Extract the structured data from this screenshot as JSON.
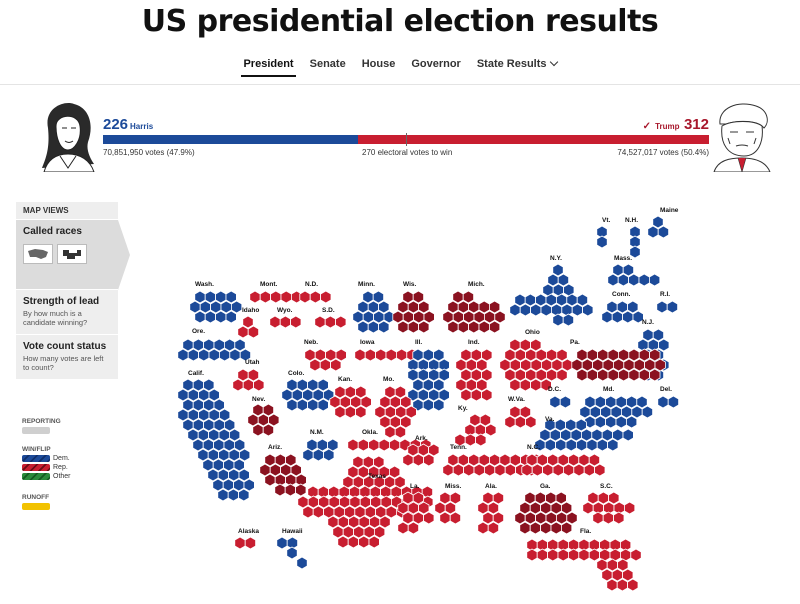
{
  "page": {
    "title": "US presidential election results"
  },
  "tabs": [
    {
      "label": "President",
      "active": true
    },
    {
      "label": "Senate",
      "active": false
    },
    {
      "label": "House",
      "active": false
    },
    {
      "label": "Governor",
      "active": false
    },
    {
      "label": "State Results",
      "active": false
    }
  ],
  "race": {
    "harris": {
      "electoral_votes": "226",
      "name": "Harris",
      "votes_text": "70,851,950 votes (47.9%)"
    },
    "trump": {
      "electoral_votes": "312",
      "name": "Trump",
      "votes_text": "74,527,017 votes (50.4%)"
    },
    "threshold_text": "270 electoral votes to win"
  },
  "map_views": {
    "header": "MAP VIEWS",
    "called": {
      "label": "Called races"
    },
    "strength": {
      "label": "Strength of lead",
      "desc": "By how much is a candidate winning?"
    },
    "count": {
      "label": "Vote count status",
      "desc": "How many votes are left to count?"
    }
  },
  "legend": {
    "reporting": "REPORTING",
    "winflip": "WIN/FLIP",
    "dem": "Dem.",
    "rep": "Rep.",
    "other": "Other",
    "runoff": "RUNOFF"
  },
  "colors": {
    "dem": "#1c4a99",
    "rep": "#c81e30",
    "flip": "#8b1220",
    "other": "#2a8a3a",
    "runoff": "#f2c200",
    "reporting": "#cfcfcf"
  },
  "states": [
    {
      "label": "Vt.",
      "party": "dem"
    },
    {
      "label": "N.H.",
      "party": "dem"
    },
    {
      "label": "Maine",
      "party": "dem"
    },
    {
      "label": "N.Y.",
      "party": "dem"
    },
    {
      "label": "Mass.",
      "party": "dem"
    },
    {
      "label": "Wash.",
      "party": "dem"
    },
    {
      "label": "Mont.",
      "party": "rep"
    },
    {
      "label": "N.D.",
      "party": "rep"
    },
    {
      "label": "Minn.",
      "party": "dem"
    },
    {
      "label": "Wis.",
      "party": "flip"
    },
    {
      "label": "Mich.",
      "party": "flip"
    },
    {
      "label": "Conn.",
      "party": "dem"
    },
    {
      "label": "R.I.",
      "party": "dem"
    },
    {
      "label": "Idaho",
      "party": "rep"
    },
    {
      "label": "Wyo.",
      "party": "rep"
    },
    {
      "label": "S.D.",
      "party": "rep"
    },
    {
      "label": "Ore.",
      "party": "dem"
    },
    {
      "label": "N.J.",
      "party": "dem"
    },
    {
      "label": "Neb.",
      "party": "rep"
    },
    {
      "label": "Iowa",
      "party": "rep"
    },
    {
      "label": "Ill.",
      "party": "dem"
    },
    {
      "label": "Ind.",
      "party": "rep"
    },
    {
      "label": "Ohio",
      "party": "rep"
    },
    {
      "label": "Pa.",
      "party": "flip"
    },
    {
      "label": "Utah",
      "party": "rep"
    },
    {
      "label": "Calif.",
      "party": "dem"
    },
    {
      "label": "Colo.",
      "party": "dem"
    },
    {
      "label": "Kan.",
      "party": "rep"
    },
    {
      "label": "Mo.",
      "party": "rep"
    },
    {
      "label": "Nev.",
      "party": "flip"
    },
    {
      "label": "D.C.",
      "party": "dem"
    },
    {
      "label": "Md.",
      "party": "dem"
    },
    {
      "label": "Del.",
      "party": "dem"
    },
    {
      "label": "W.Va.",
      "party": "rep"
    },
    {
      "label": "Ky.",
      "party": "rep"
    },
    {
      "label": "Va.",
      "party": "dem"
    },
    {
      "label": "N.M.",
      "party": "dem"
    },
    {
      "label": "Okla.",
      "party": "rep"
    },
    {
      "label": "Ark.",
      "party": "rep"
    },
    {
      "label": "Tenn.",
      "party": "rep"
    },
    {
      "label": "N.C.",
      "party": "rep"
    },
    {
      "label": "Ariz.",
      "party": "flip"
    },
    {
      "label": "Texas",
      "party": "rep"
    },
    {
      "label": "La.",
      "party": "rep"
    },
    {
      "label": "Miss.",
      "party": "rep"
    },
    {
      "label": "Ala.",
      "party": "rep"
    },
    {
      "label": "Ga.",
      "party": "flip"
    },
    {
      "label": "S.C.",
      "party": "rep"
    },
    {
      "label": "Alaska",
      "party": "rep"
    },
    {
      "label": "Hawaii",
      "party": "dem"
    },
    {
      "label": "Fla.",
      "party": "rep"
    }
  ]
}
